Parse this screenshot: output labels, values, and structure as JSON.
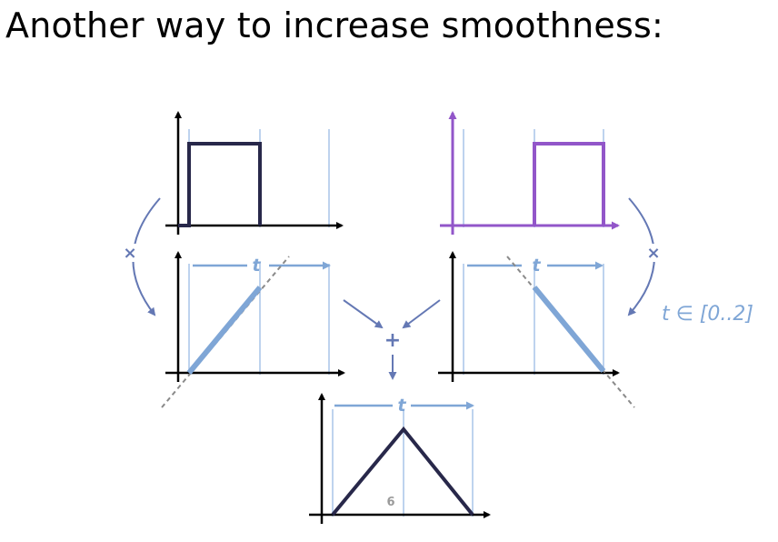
{
  "slide": {
    "title": "Another way to increase smoothness:",
    "range_label": "t ∈ [0..2]",
    "page_number": "6"
  },
  "panels": {
    "top_left": {
      "type": "box-function",
      "color": "#28284a"
    },
    "top_right": {
      "type": "box-function",
      "color": "#9256c9"
    },
    "mid_left": {
      "type": "ramp-up",
      "axis_label": "t",
      "color": "#7fa6d6"
    },
    "mid_right": {
      "type": "ramp-down",
      "axis_label": "t",
      "color": "#7fa6d6"
    },
    "bottom": {
      "type": "triangle-function",
      "axis_label": "t",
      "color": "#28284a"
    }
  },
  "operators": {
    "multiply_left": "×",
    "multiply_right": "×",
    "add": "+"
  },
  "colors": {
    "axis": "#000000",
    "grid": "#a9c4e8",
    "arrow": "#6478b4",
    "dashed": "#8a8a8a"
  }
}
